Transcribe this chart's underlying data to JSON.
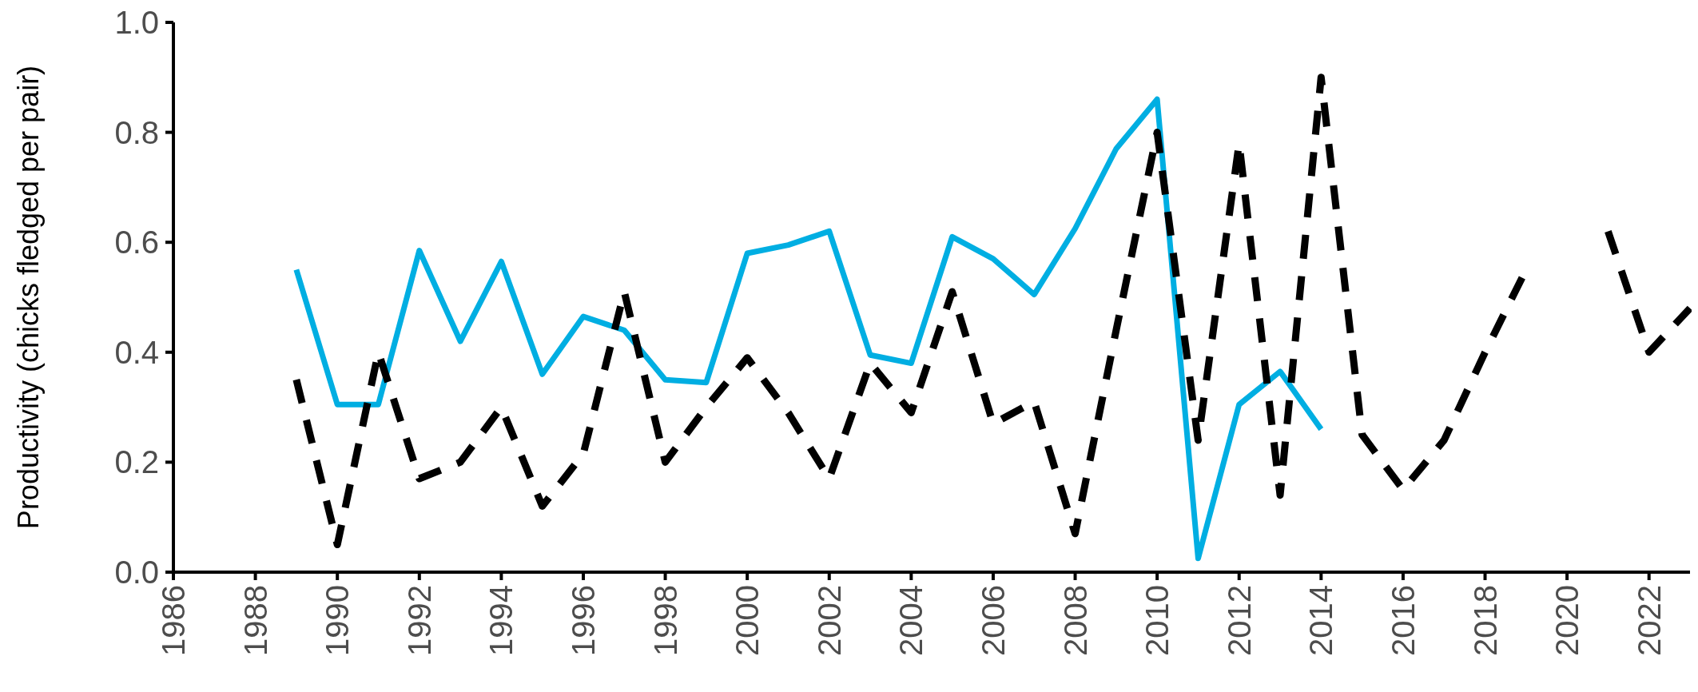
{
  "chart_data": {
    "type": "line",
    "ylabel": "Productivity (chicks fledged per pair)",
    "x": [
      1989,
      1990,
      1991,
      1992,
      1993,
      1994,
      1995,
      1996,
      1997,
      1998,
      1999,
      2000,
      2001,
      2002,
      2003,
      2004,
      2005,
      2006,
      2007,
      2008,
      2009,
      2010,
      2011,
      2012,
      2013,
      2014,
      2015,
      2016,
      2017,
      2018,
      2019,
      2020,
      2021,
      2022,
      2023
    ],
    "series": [
      {
        "color": "#00aee2",
        "line_style": "solid",
        "values": [
          0.55,
          0.305,
          0.305,
          0.585,
          0.42,
          0.565,
          0.36,
          0.465,
          0.44,
          0.35,
          0.345,
          0.58,
          0.595,
          0.62,
          0.395,
          0.38,
          0.61,
          0.57,
          0.505,
          0.625,
          0.77,
          0.86,
          0.025,
          0.305,
          0.365,
          0.26,
          null,
          null,
          null,
          null,
          null,
          null,
          null,
          null,
          null
        ]
      },
      {
        "color": "#000000",
        "line_style": "dashed",
        "values": [
          0.35,
          0.05,
          0.4,
          0.17,
          0.2,
          0.3,
          0.12,
          0.215,
          0.51,
          0.2,
          0.3,
          0.39,
          0.29,
          0.17,
          0.38,
          0.29,
          0.51,
          0.27,
          0.31,
          0.07,
          0.44,
          0.8,
          0.24,
          0.78,
          0.14,
          0.9,
          0.25,
          0.15,
          0.24,
          0.4,
          0.55,
          null,
          0.62,
          0.4,
          0.48
        ]
      }
    ],
    "xlim": [
      1986,
      2023
    ],
    "xticks": [
      1986,
      1988,
      1990,
      1992,
      1994,
      1996,
      1998,
      2000,
      2002,
      2004,
      2006,
      2008,
      2010,
      2012,
      2014,
      2016,
      2018,
      2020,
      2022
    ],
    "ylim": [
      0,
      1
    ],
    "yticks": [
      {
        "value": 0,
        "label": "0.0"
      },
      {
        "value": 0.2,
        "label": "0.2"
      },
      {
        "value": 0.4,
        "label": "0.4"
      },
      {
        "value": 0.6,
        "label": "0.6"
      },
      {
        "value": 0.8,
        "label": "0.8"
      },
      {
        "value": 1,
        "label": "1.0"
      }
    ],
    "grid": false
  }
}
